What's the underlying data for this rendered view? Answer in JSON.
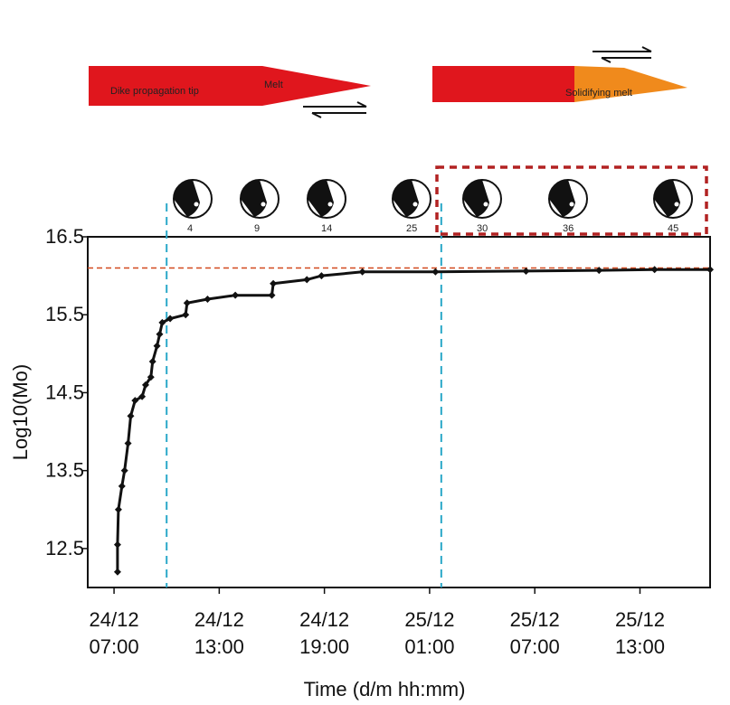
{
  "chart_data": {
    "type": "line",
    "xlabel": "Time (d/m hh:mm)",
    "ylabel": "Log10(Mo)",
    "xlim": [
      "24/12 05:30",
      "25/12 17:00"
    ],
    "xticks": [
      "24/12 07:00",
      "24/12 13:00",
      "24/12 19:00",
      "25/12 01:00",
      "25/12 07:00",
      "25/12 13:00"
    ],
    "ylim": [
      12.0,
      16.5
    ],
    "yticks": [
      12.5,
      13.5,
      14.5,
      15.5,
      16.5
    ],
    "series": [
      {
        "color": "#111111",
        "x": [
          "24/12 07:12",
          "24/12 07:12",
          "24/12 07:15",
          "24/12 07:27",
          "24/12 07:36",
          "24/12 07:48",
          "24/12 07:57",
          "24/12 08:12",
          "24/12 08:36",
          "24/12 08:48",
          "24/12 09:06",
          "24/12 09:12",
          "24/12 09:27",
          "24/12 09:36",
          "24/12 09:45",
          "24/12 10:12",
          "24/12 11:05",
          "24/12 11:10",
          "24/12 12:20",
          "24/12 13:55",
          "24/12 16:00",
          "24/12 16:05",
          "24/12 18:00",
          "24/12 18:50",
          "24/12 21:10",
          "25/12 01:20",
          "25/12 06:30",
          "25/12 10:40",
          "25/12 13:50",
          "25/12 17:00"
        ],
        "values": [
          12.2,
          12.55,
          13.0,
          13.3,
          13.5,
          13.85,
          14.2,
          14.4,
          14.45,
          14.6,
          14.7,
          14.9,
          15.1,
          15.25,
          15.4,
          15.45,
          15.5,
          15.65,
          15.7,
          15.75,
          15.75,
          15.9,
          15.95,
          16.0,
          16.05,
          16.05,
          16.06,
          16.07,
          16.08,
          16.08
        ]
      }
    ],
    "vlines": {
      "x": [
        "24/12 10:00",
        "25/12 01:40"
      ],
      "color": "#2aa8c8"
    },
    "hline": {
      "y": 16.1,
      "color": "#d2491e"
    },
    "mechanism_labels": [
      "4",
      "9",
      "14",
      "25",
      "30",
      "36",
      "45"
    ],
    "box_color": "#b22222",
    "diagram": {
      "dike_label": "Dike propagation tip",
      "melt_label": "Melt",
      "solid_label": "Solidifying melt",
      "melt_color": "#e0161d",
      "solid_color": "#f08a1c"
    }
  }
}
